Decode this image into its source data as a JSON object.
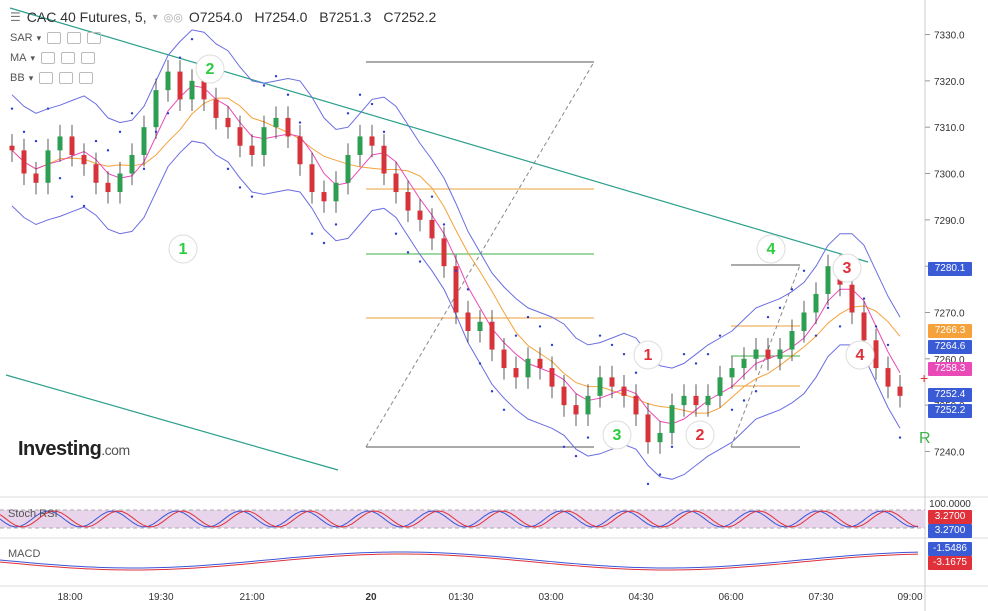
{
  "header": {
    "symbol": "CAC 40 Futures, 5,",
    "open": "O7254.0",
    "high": "H7254.0",
    "low": "B7251.3",
    "close": "C7252.2"
  },
  "indicators": [
    "SAR",
    "MA",
    "BB"
  ],
  "logo": {
    "main": "Investing",
    "suffix": ".com"
  },
  "panes": {
    "stoch": "Stoch RSI",
    "macd": "MACD"
  },
  "tags": {
    "t1": "7280.1",
    "t2": "7266.3",
    "t3": "7264.6",
    "t4": "7258.3",
    "t5": "7252.4",
    "t6": "7252.2",
    "stoch_top": "100.0000",
    "stoch_a": "3.2700",
    "stoch_b": "3.2700",
    "macd_a": "-1.5486",
    "macd_b": "-3.1675"
  },
  "labels": {
    "wave": [
      "1",
      "2",
      "3",
      "4",
      "1",
      "2",
      "3",
      "4"
    ],
    "r": "R"
  },
  "chart_data": {
    "type": "candlestick",
    "title": "CAC 40 Futures, 5",
    "y_ticks": [
      7330.0,
      7320.0,
      7310.0,
      7300.0,
      7290.0,
      7280.0,
      7270.0,
      7260.0,
      7250.0,
      7240.0
    ],
    "ylim": [
      7236,
      7334
    ],
    "x_ticks": [
      "18:00",
      "19:30",
      "21:00",
      "20",
      "01:30",
      "03:00",
      "04:30",
      "06:00",
      "07:30",
      "09:00"
    ],
    "last": {
      "open": 7254.0,
      "high": 7254.0,
      "low": 7251.3,
      "close": 7252.2
    },
    "price_levels": [
      7280.1,
      7266.3,
      7264.6,
      7258.3,
      7252.4,
      7252.2
    ],
    "close_path": [
      7305,
      7300,
      7298,
      7305,
      7308,
      7304,
      7302,
      7298,
      7296,
      7300,
      7304,
      7310,
      7318,
      7322,
      7316,
      7320,
      7316,
      7312,
      7310,
      7306,
      7304,
      7310,
      7312,
      7308,
      7302,
      7296,
      7294,
      7298,
      7304,
      7308,
      7306,
      7300,
      7296,
      7292,
      7290,
      7286,
      7280,
      7270,
      7266,
      7268,
      7262,
      7258,
      7256,
      7260,
      7258,
      7254,
      7250,
      7248,
      7252,
      7256,
      7254,
      7252,
      7248,
      7242,
      7244,
      7250,
      7252,
      7250,
      7252,
      7256,
      7258,
      7260,
      7262,
      7260,
      7262,
      7266,
      7270,
      7274,
      7280,
      7276,
      7270,
      7264,
      7258,
      7254,
      7252
    ]
  }
}
